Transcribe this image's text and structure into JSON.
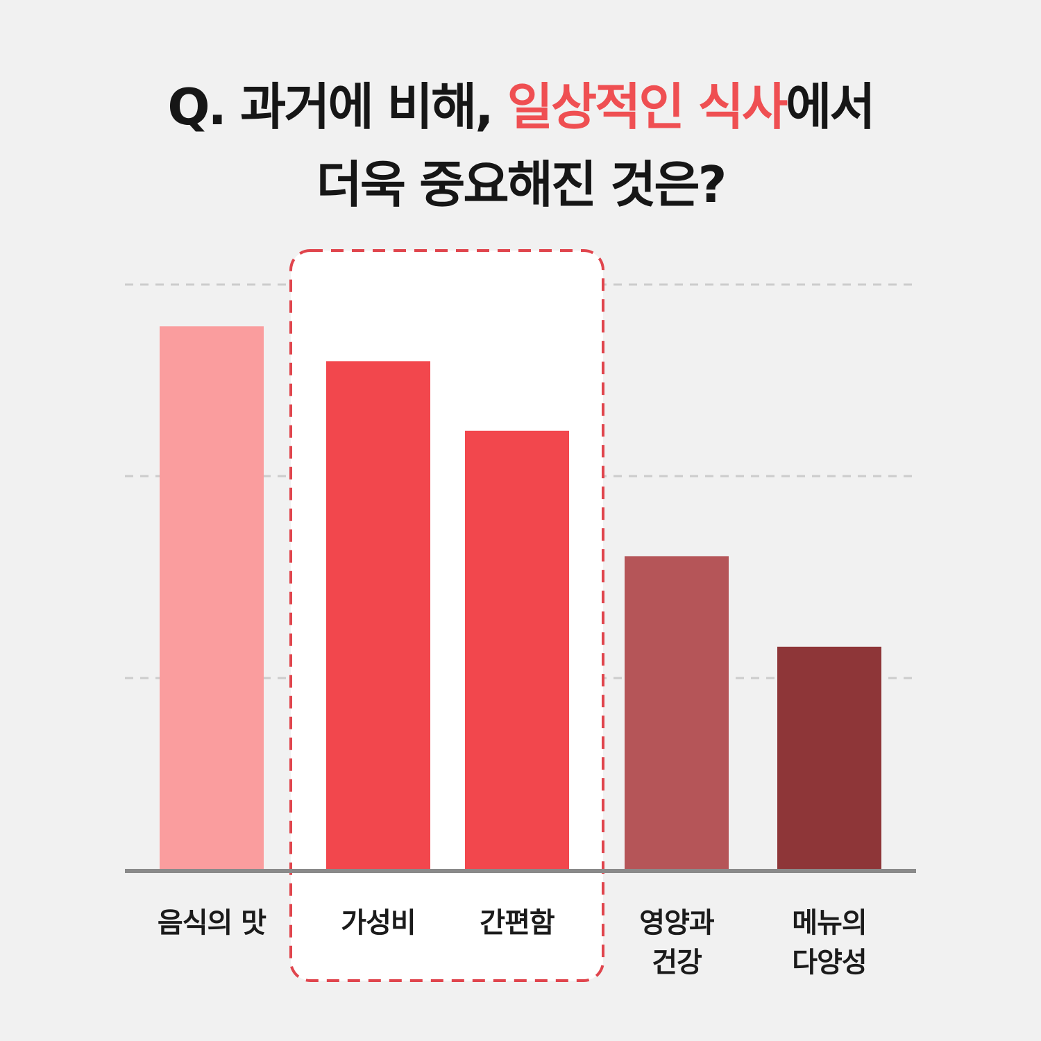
{
  "title": {
    "part1": "Q. 과거에 비해, ",
    "highlight": "일상적인 식사",
    "part2": "에서",
    "line2": "더욱 중요해진 것은?"
  },
  "colors": {
    "background": "#f1f1f1",
    "title_text": "#161616",
    "highlight": "#ef4f52",
    "grid": "#cccccc",
    "baseline": "#8a8a8a",
    "highlight_box_border": "#e0454d",
    "highlight_box_fill": "#ffffff"
  },
  "chart_data": {
    "type": "bar",
    "title": "Q. 과거에 비해, 일상적인 식사에서 더욱 중요해진 것은?",
    "categories": [
      "음식의 맛",
      "가성비",
      "간편함",
      "영양과 건강",
      "메뉴의 다양성"
    ],
    "label_lines": [
      [
        "음식의 맛"
      ],
      [
        "가성비"
      ],
      [
        "간편함"
      ],
      [
        "영양과",
        "건강"
      ],
      [
        "메뉴의",
        "다양성"
      ]
    ],
    "values": [
      78,
      73,
      63,
      45,
      32
    ],
    "bar_colors": [
      "#fa9d9e",
      "#f2474d",
      "#f2474d",
      "#b55558",
      "#8e3638"
    ],
    "highlighted_categories": [
      "가성비",
      "간편함"
    ],
    "ylim": [
      0,
      84
    ],
    "gridlines": [
      27.5,
      56.5,
      84
    ],
    "grid": true,
    "legend": "none",
    "xlabel": "",
    "ylabel": ""
  }
}
